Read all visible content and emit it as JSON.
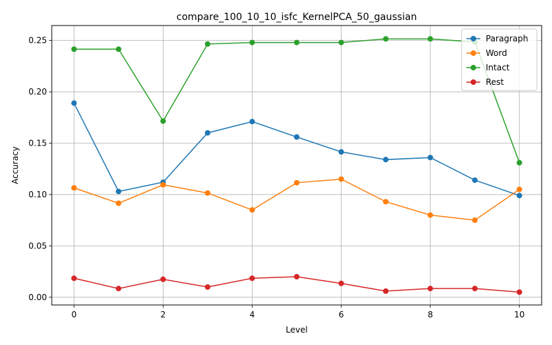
{
  "chart_data": {
    "type": "line",
    "title": "compare_100_10_10_isfc_KernelPCA_50_gaussian",
    "xlabel": "Level",
    "ylabel": "Accuracy",
    "x": [
      0,
      1,
      2,
      3,
      4,
      5,
      6,
      7,
      8,
      9,
      10
    ],
    "xlim": [
      -0.5,
      10.5
    ],
    "ylim": [
      -0.0075,
      0.2645
    ],
    "xticks": [
      0,
      2,
      4,
      6,
      8,
      10
    ],
    "xtick_labels": [
      "0",
      "2",
      "4",
      "6",
      "8",
      "10"
    ],
    "yticks": [
      0.0,
      0.05,
      0.1,
      0.15,
      0.2,
      0.25
    ],
    "ytick_labels": [
      "0.00",
      "0.05",
      "0.10",
      "0.15",
      "0.20",
      "0.25"
    ],
    "grid": true,
    "legend_position": "upper right",
    "series": [
      {
        "name": "Paragraph",
        "color": "#1f77b4",
        "values": [
          0.189,
          0.103,
          0.112,
          0.16,
          0.171,
          0.156,
          0.1415,
          0.134,
          0.136,
          0.114,
          0.099
        ]
      },
      {
        "name": "Word",
        "color": "#ff7f0e",
        "values": [
          0.1065,
          0.0915,
          0.1095,
          0.1015,
          0.085,
          0.1115,
          0.115,
          0.093,
          0.08,
          0.075,
          0.105
        ]
      },
      {
        "name": "Intact",
        "color": "#2ca02c",
        "values": [
          0.2415,
          0.2415,
          0.1715,
          0.2465,
          0.248,
          0.248,
          0.248,
          0.2515,
          0.2515,
          0.2485,
          0.131
        ]
      },
      {
        "name": "Rest",
        "color": "#d62728",
        "values": [
          0.0185,
          0.0085,
          0.0175,
          0.01,
          0.0185,
          0.02,
          0.0135,
          0.006,
          0.0085,
          0.0085,
          0.005
        ]
      }
    ]
  }
}
